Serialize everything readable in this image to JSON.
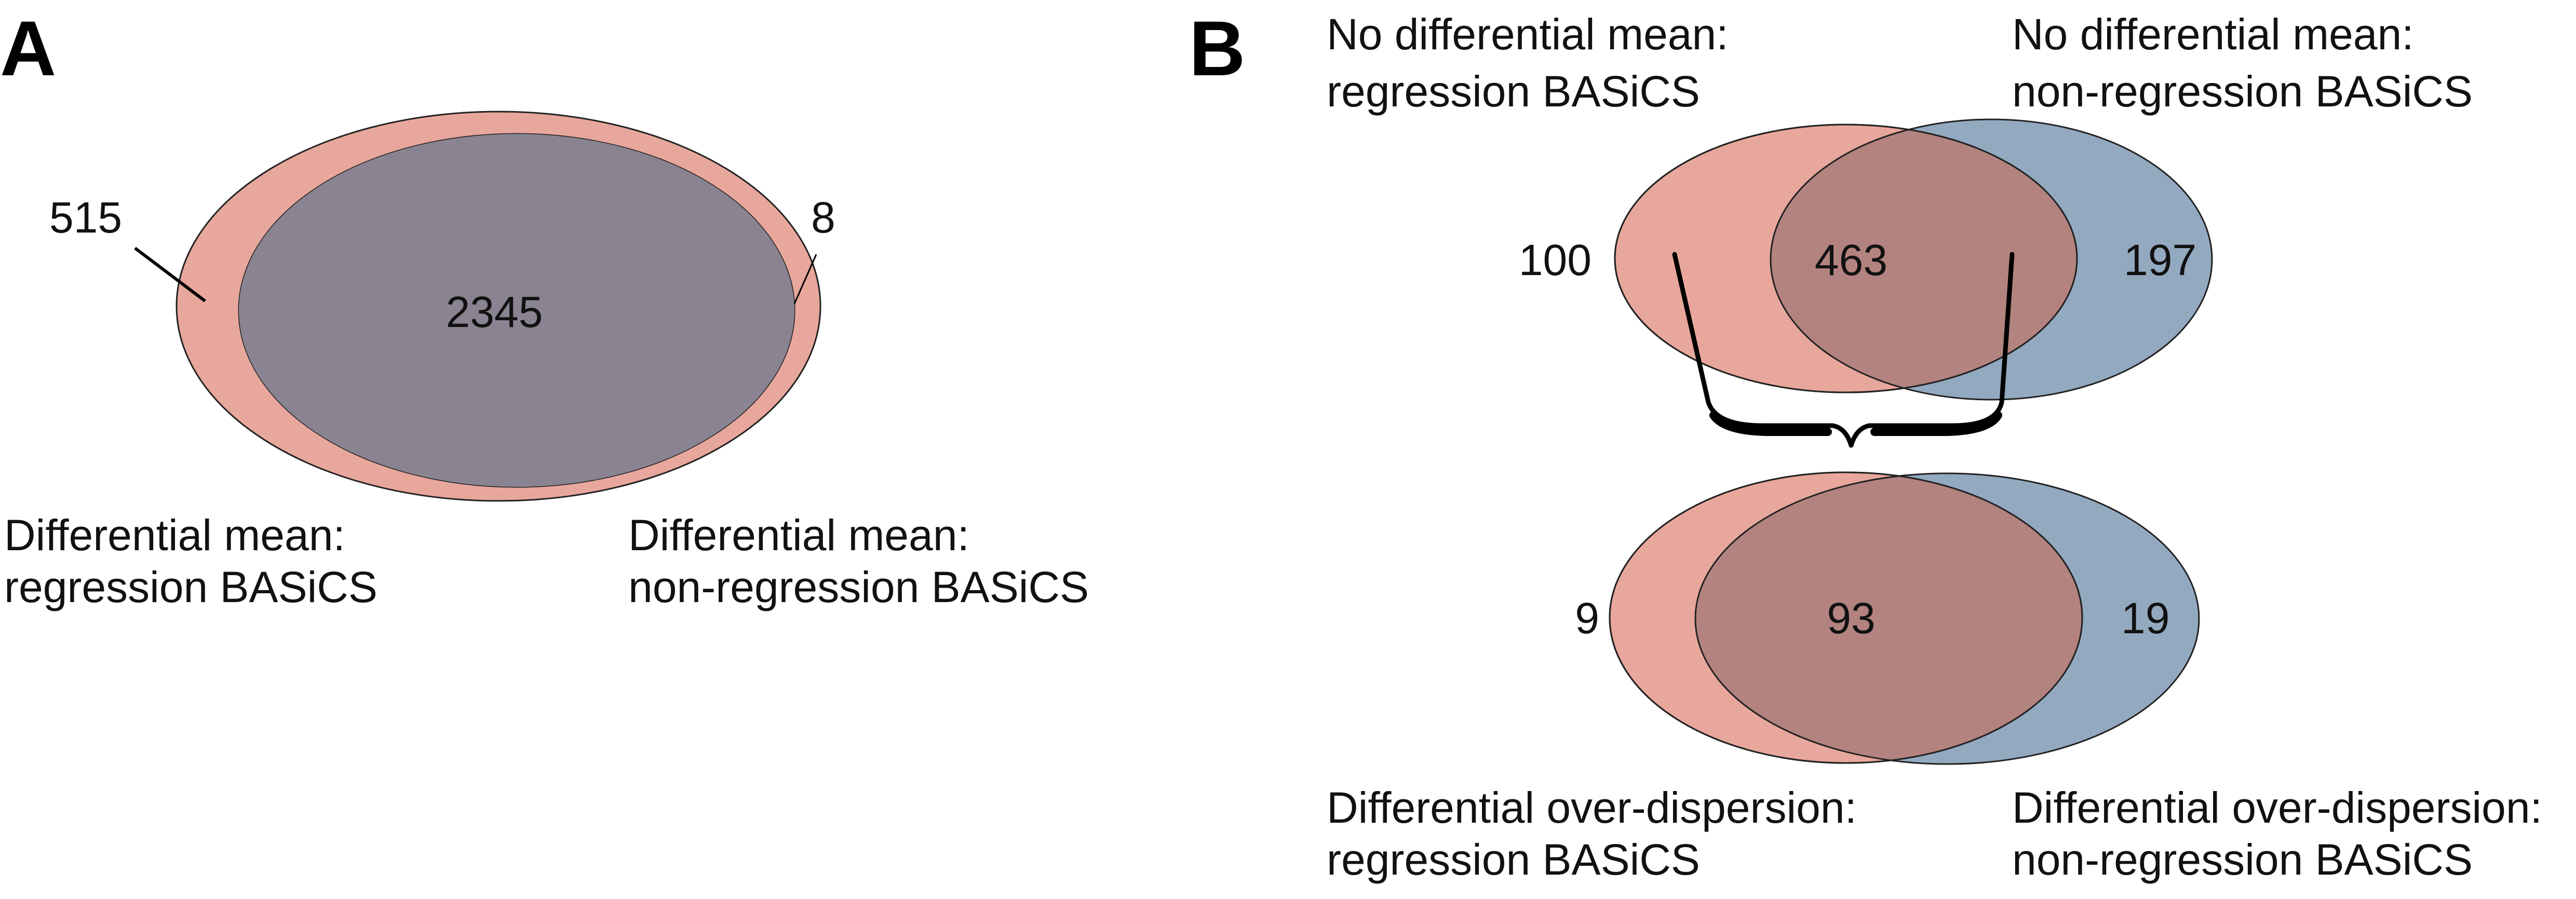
{
  "panels": {
    "a": {
      "letter": "A",
      "counts": {
        "left_only": "515",
        "both": "2345",
        "right_only": "8"
      },
      "labels": {
        "left_line1": "Differential mean:",
        "left_line2": "regression BASiCS",
        "right_line1": "Differential mean:",
        "right_line2": "non-regression BASiCS"
      }
    },
    "b": {
      "letter": "B",
      "top": {
        "counts": {
          "left_only": "100",
          "both": "463",
          "right_only": "197"
        },
        "labels": {
          "left_line1": "No differential mean:",
          "left_line2": "regression BASiCS",
          "right_line1": "No differential mean:",
          "right_line2": "non-regression BASiCS"
        }
      },
      "bottom": {
        "counts": {
          "left_only": "9",
          "both": "93",
          "right_only": "19"
        },
        "labels": {
          "left_line1": "Differential over-dispersion:",
          "left_line2": "regression BASiCS",
          "right_line1": "Differential over-dispersion:",
          "right_line2": "non-regression BASiCS"
        }
      }
    }
  },
  "colors": {
    "regression": "#E8A79C",
    "non_regression": "#93A9C0",
    "overlap_a": "#8A8391",
    "overlap_b": "#B38380"
  }
}
